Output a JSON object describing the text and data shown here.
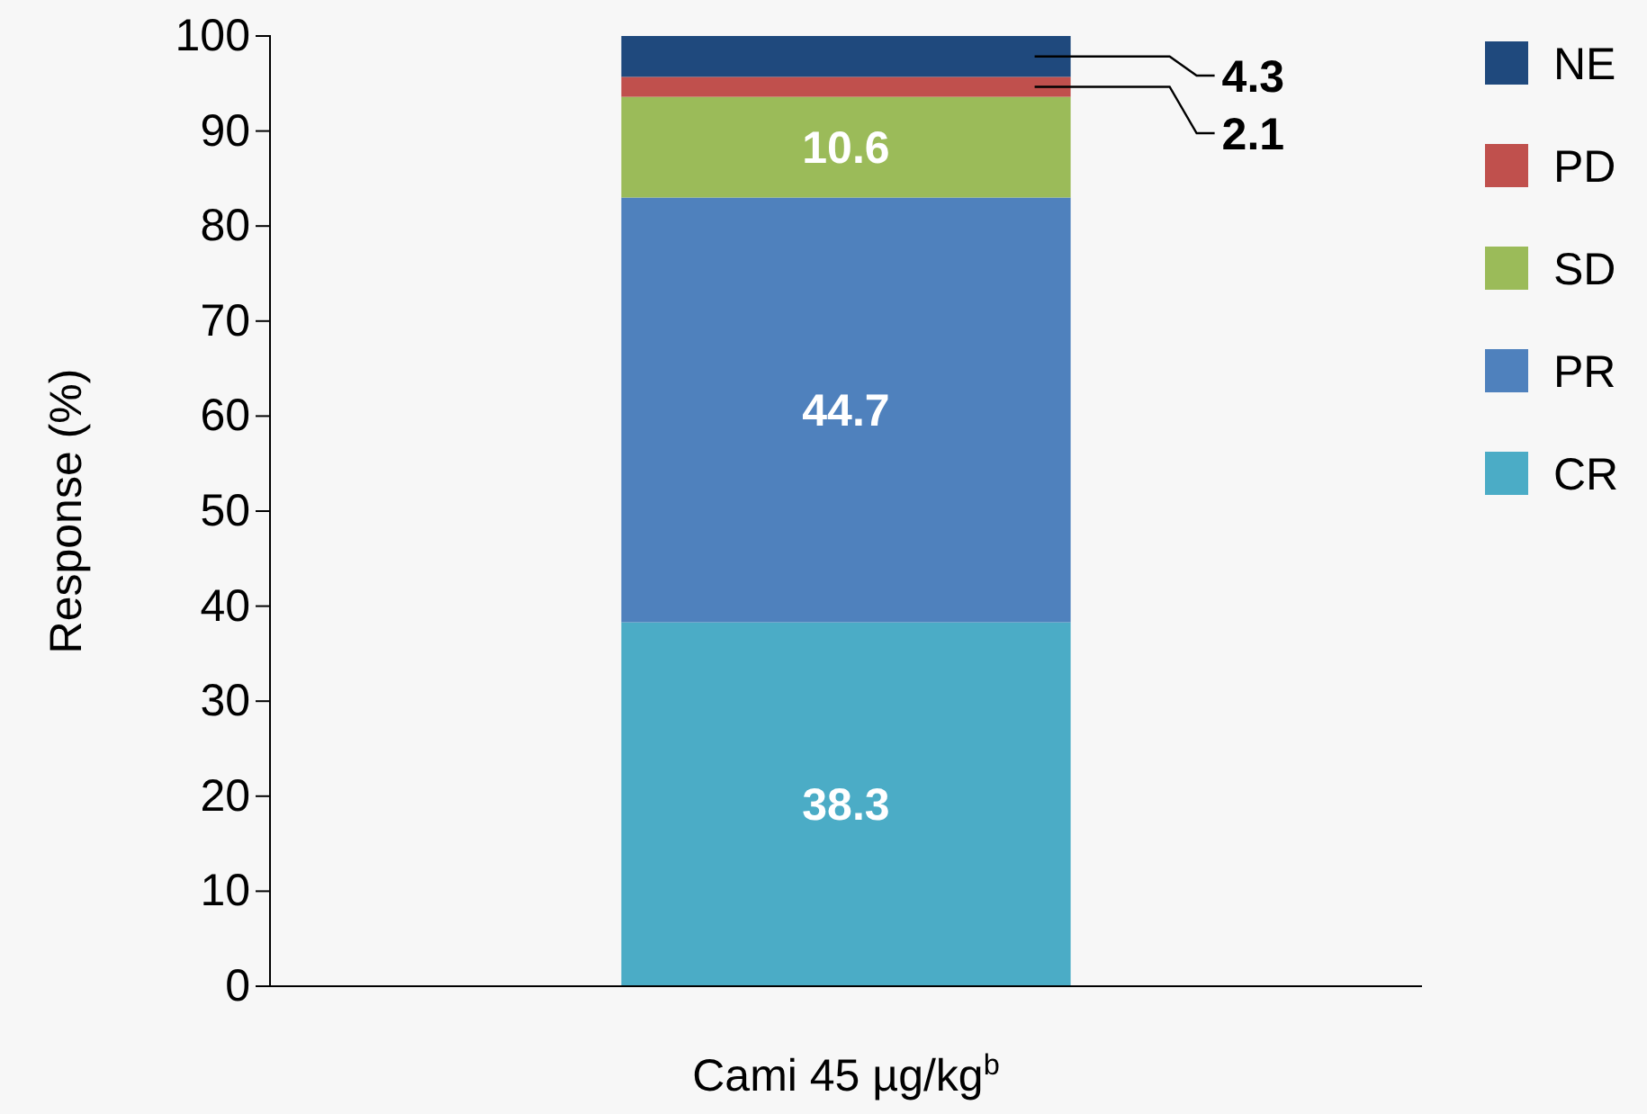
{
  "chart_data": {
    "type": "bar",
    "stacked": true,
    "ylabel": "Response (%)",
    "categories": [
      "Cami 45 µg/kg$^{b}$"
    ],
    "series": [
      {
        "name": "CR",
        "color": "#4bacc6",
        "values": [
          38.3
        ],
        "value_labels": [
          "38.3"
        ]
      },
      {
        "name": "PR",
        "color": "#4f81bd",
        "values": [
          44.7
        ],
        "value_labels": [
          "44.7"
        ]
      },
      {
        "name": "SD",
        "color": "#9bbb59",
        "values": [
          10.6
        ],
        "value_labels": [
          "10.6"
        ]
      },
      {
        "name": "PD",
        "color": "#c0504d",
        "values": [
          2.1
        ],
        "value_labels": [
          null
        ]
      },
      {
        "name": "NE",
        "color": "#1f497d",
        "values": [
          4.3
        ],
        "value_labels": [
          null
        ]
      }
    ],
    "annotations": [
      "4.3",
      "2.1"
    ],
    "ylim": [
      0,
      100
    ],
    "yticks": [
      0,
      10,
      20,
      30,
      40,
      50,
      60,
      70,
      80,
      90,
      100
    ],
    "legend": "right",
    "grid": false
  }
}
